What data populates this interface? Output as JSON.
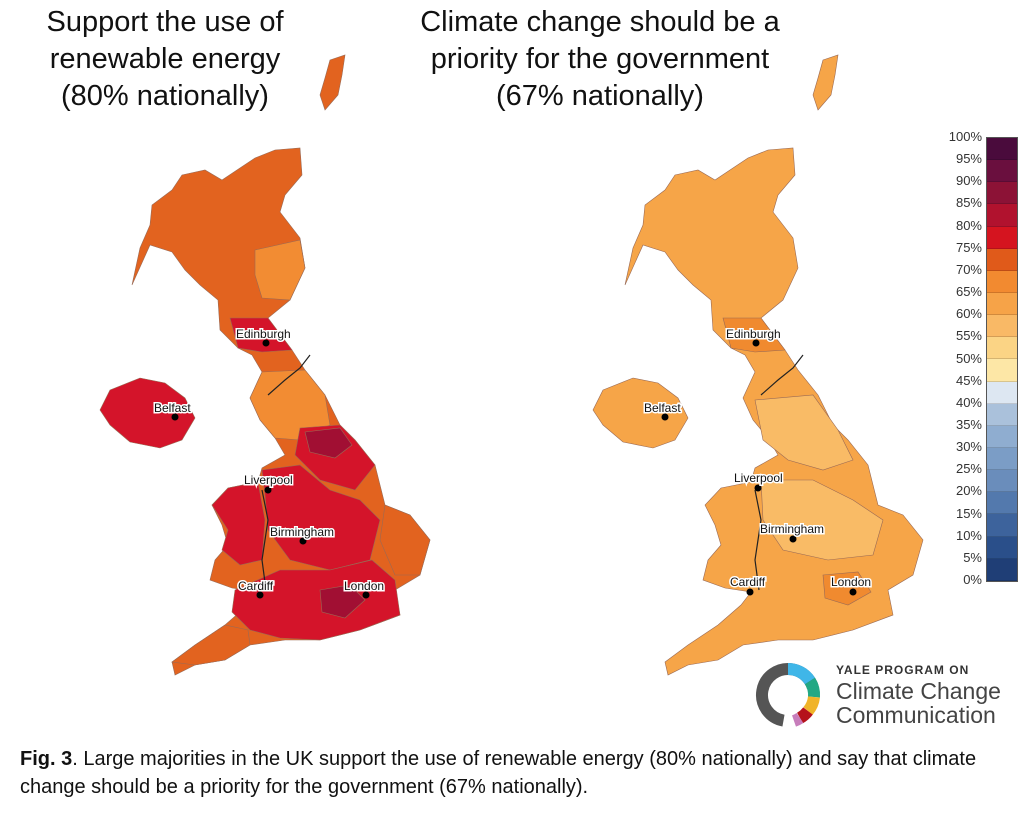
{
  "titles": {
    "left": [
      "Support the use of",
      "renewable energy",
      "(80% nationally)"
    ],
    "right": [
      "Climate change should be a",
      "priority for the government",
      "(67% nationally)"
    ]
  },
  "cities": {
    "edinburgh": "Edinburgh",
    "belfast": "Belfast",
    "liverpool": "Liverpool",
    "birmingham": "Birmingham",
    "cardiff": "Cardiff",
    "london": "London"
  },
  "legend": {
    "labels": [
      "100%",
      "95%",
      "90%",
      "85%",
      "80%",
      "75%",
      "70%",
      "65%",
      "60%",
      "55%",
      "50%",
      "45%",
      "40%",
      "35%",
      "30%",
      "25%",
      "20%",
      "15%",
      "10%",
      "5%",
      "0%"
    ],
    "colors": [
      "#4a0b3c",
      "#6a0f3e",
      "#8c1236",
      "#b1122e",
      "#d5141f",
      "#e05a1a",
      "#f28a30",
      "#f6a348",
      "#f9b966",
      "#fbd485",
      "#fde7a6",
      "#dde7f2",
      "#aac1db",
      "#8fadd0",
      "#7b9dc6",
      "#6a8dbb",
      "#5379ad",
      "#3d639c",
      "#2a4f8a",
      "#1f3e76",
      "#152b5d"
    ]
  },
  "colors": {
    "left_main": "#e2631f",
    "left_red": "#d4142a",
    "left_dark": "#a10f33",
    "left_light": "#f28c33",
    "right_main": "#f6a548",
    "right_light": "#f9bb66",
    "right_dark": "#f08a2f"
  },
  "logo": {
    "small": "YALE PROGRAM ON",
    "line1": "Climate Change",
    "line2": "Communication"
  },
  "caption": {
    "prefix": "Fig. 3",
    "text": ". Large majorities in the UK support the use of renewable energy (80% nationally) and say that climate change should be a priority for the government (67% nationally)."
  }
}
